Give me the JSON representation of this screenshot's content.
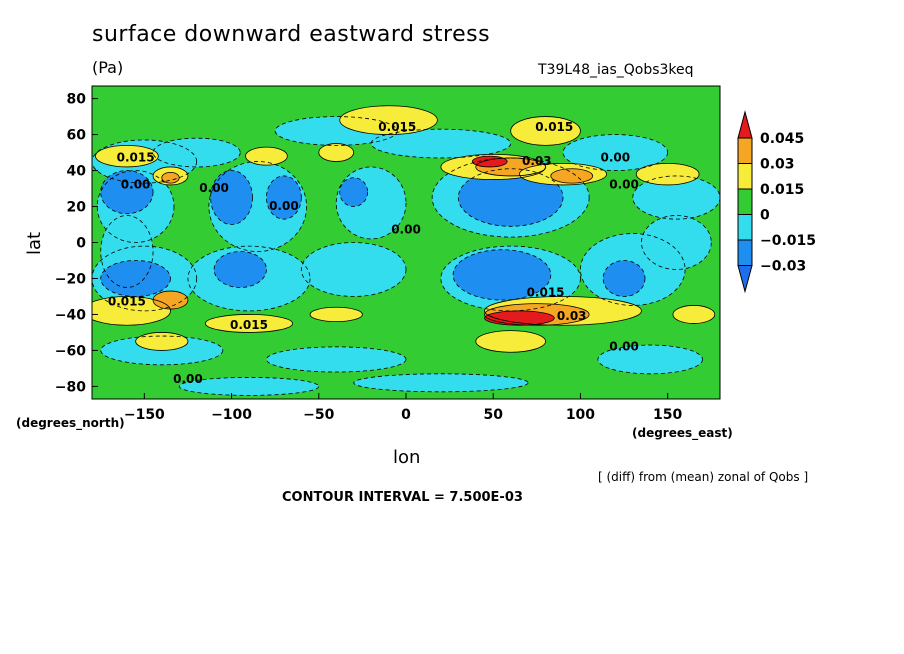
{
  "chart_data": {
    "type": "heatmap",
    "title": "surface downward eastward stress",
    "units": "(Pa)",
    "run_id": "T39L48_ias_Qobs3keq",
    "xlabel": "lon",
    "ylabel": "lat",
    "x_units": "(degrees_east)",
    "y_units": "(degrees_north)",
    "xlim": [
      -180,
      180
    ],
    "ylim": [
      -87,
      87
    ],
    "x_ticks": [
      -150,
      -100,
      -50,
      0,
      50,
      100,
      150
    ],
    "x_tick_labels": [
      "−150",
      "−100",
      "−50",
      "0",
      "50",
      "100",
      "150"
    ],
    "y_ticks": [
      80,
      60,
      40,
      20,
      0,
      -20,
      -40,
      -60,
      -80
    ],
    "y_tick_labels": [
      "80",
      "60",
      "40",
      "20",
      "0",
      "−20",
      "−40",
      "−60",
      "−80"
    ],
    "colorbar": {
      "levels": [
        0.045,
        0.03,
        0.015,
        0,
        -0.015,
        -0.03
      ],
      "labels": [
        "0.045",
        "0.03",
        "0.015",
        "0",
        "−0.015",
        "−0.03"
      ],
      "colors": [
        "#e41a1c",
        "#f5a623",
        "#f8ec3a",
        "#33cc33",
        "#33ddee",
        "#1e8ff0",
        "#1e6ff0"
      ]
    },
    "contour_labels": [
      {
        "text": "0.015",
        "lon": -5,
        "lat": 62
      },
      {
        "text": "0.015",
        "lon": 85,
        "lat": 62
      },
      {
        "text": "0.015",
        "lon": -155,
        "lat": 45
      },
      {
        "text": "0.00",
        "lon": -155,
        "lat": 30
      },
      {
        "text": "0.00",
        "lon": -110,
        "lat": 28
      },
      {
        "text": "0.00",
        "lon": -70,
        "lat": 18
      },
      {
        "text": "0.00",
        "lon": 0,
        "lat": 5
      },
      {
        "text": "0.00",
        "lon": 120,
        "lat": 45
      },
      {
        "text": "0.00",
        "lon": 125,
        "lat": 30
      },
      {
        "text": "0.03",
        "lon": 75,
        "lat": 43
      },
      {
        "text": "0.015",
        "lon": -160,
        "lat": -35
      },
      {
        "text": "0.015",
        "lon": -90,
        "lat": -48
      },
      {
        "text": "0.015",
        "lon": 80,
        "lat": -30
      },
      {
        "text": "0.03",
        "lon": 95,
        "lat": -43
      },
      {
        "text": "0.00",
        "lon": 125,
        "lat": -60
      },
      {
        "text": "0.00",
        "lon": -125,
        "lat": -78
      }
    ],
    "note": "[ (diff) from (mean) zonal of Qobs ]",
    "contour_interval": "CONTOUR INTERVAL = 7.500E-03"
  }
}
